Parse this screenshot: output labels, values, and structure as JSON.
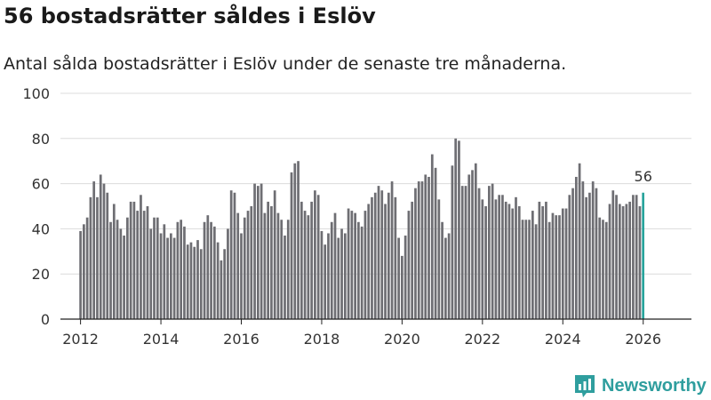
{
  "header": {
    "title": "56 bostadsrätter såldes i Eslöv",
    "subtitle": "Antal sålda bostadsrätter i Eslöv under de senaste tre månaderna."
  },
  "brand": {
    "name": "Newsworthy",
    "color": "#2f9e9e"
  },
  "chart_data": {
    "type": "bar",
    "title": "56 bostadsrätter såldes i Eslöv",
    "subtitle": "Antal sålda bostadsrätter i Eslöv under de senaste tre månaderna.",
    "xlabel": "",
    "ylabel": "",
    "x_start": 2012.0,
    "x_step": 0.08333,
    "xlim": [
      2011.5,
      2027.2
    ],
    "ylim": [
      0,
      100
    ],
    "yticks": [
      0,
      20,
      40,
      60,
      80,
      100
    ],
    "xticks": [
      2012,
      2014,
      2016,
      2018,
      2020,
      2022,
      2024,
      2026
    ],
    "grid": true,
    "bar_color": "#6e6e73",
    "highlight_color": "#23a29a",
    "values": [
      39,
      42,
      45,
      54,
      61,
      54,
      64,
      60,
      56,
      43,
      51,
      44,
      40,
      37,
      45,
      52,
      52,
      48,
      55,
      48,
      50,
      40,
      45,
      45,
      38,
      42,
      36,
      38,
      36,
      43,
      44,
      41,
      33,
      34,
      32,
      35,
      31,
      43,
      46,
      43,
      41,
      34,
      26,
      31,
      40,
      57,
      56,
      47,
      38,
      45,
      48,
      50,
      60,
      59,
      60,
      47,
      52,
      50,
      57,
      47,
      44,
      37,
      44,
      65,
      69,
      70,
      52,
      48,
      46,
      52,
      57,
      55,
      39,
      33,
      38,
      43,
      47,
      36,
      40,
      38,
      49,
      48,
      47,
      43,
      41,
      48,
      51,
      54,
      56,
      59,
      57,
      51,
      56,
      61,
      54,
      36,
      28,
      37,
      48,
      52,
      58,
      61,
      61,
      64,
      63,
      73,
      67,
      53,
      43,
      36,
      38,
      68,
      80,
      79,
      59,
      59,
      64,
      66,
      69,
      58,
      53,
      50,
      59,
      60,
      53,
      55,
      55,
      52,
      51,
      49,
      54,
      50,
      44,
      44,
      44,
      48,
      42,
      52,
      50,
      52,
      43,
      47,
      46,
      46,
      49,
      49,
      55,
      58,
      63,
      69,
      61,
      54,
      56,
      61,
      58,
      45,
      44,
      43,
      51,
      57,
      55,
      51,
      50,
      51,
      52,
      55,
      55,
      50,
      56
    ],
    "last_label": "56"
  }
}
